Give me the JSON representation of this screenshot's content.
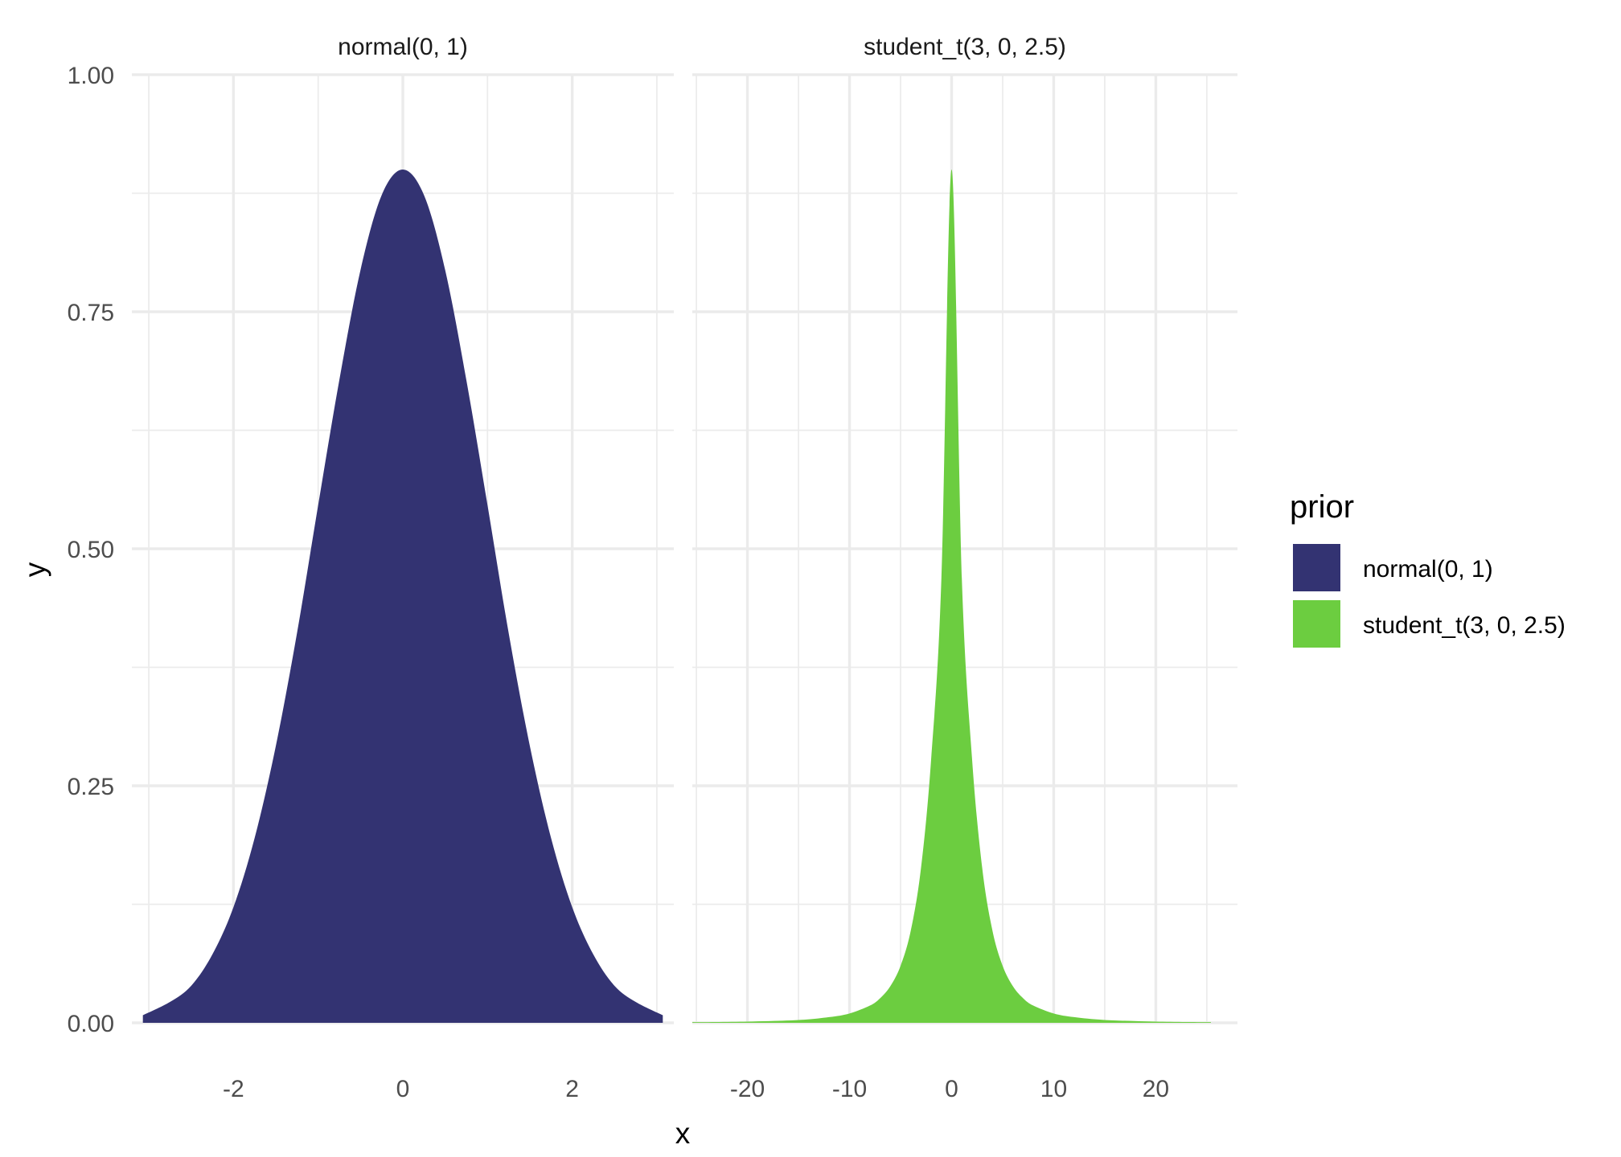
{
  "chart_data": {
    "type": "area",
    "xlabel": "x",
    "ylabel": "y",
    "ylim": [
      0,
      1
    ],
    "y_ticks": [
      "0.00",
      "0.25",
      "0.50",
      "0.75",
      "1.00"
    ],
    "y_tick_values": [
      0,
      0.25,
      0.5,
      0.75,
      1.0
    ],
    "grid": true,
    "legend": {
      "title": "prior",
      "position": "right",
      "entries": [
        {
          "label": "normal(0, 1)",
          "color": "#333372"
        },
        {
          "label": "student_t(3, 0, 2.5)",
          "color": "#6ccd40"
        }
      ]
    },
    "facets": [
      {
        "title": "normal(0, 1)",
        "color": "#333372",
        "xlim": [
          -3.2,
          3.2
        ],
        "x_ticks": [
          "-2",
          "0",
          "2"
        ],
        "x_tick_values": [
          -2,
          0,
          2
        ],
        "x_minor": [
          -3,
          -1,
          1,
          3
        ],
        "series": {
          "name": "normal(0, 1)",
          "x": [
            -3.07,
            -2.75,
            -2.5,
            -2.25,
            -2.0,
            -1.75,
            -1.5,
            -1.25,
            -1.0,
            -0.75,
            -0.5,
            -0.25,
            0.0,
            0.25,
            0.5,
            0.75,
            1.0,
            1.25,
            1.5,
            1.75,
            2.0,
            2.25,
            2.5,
            2.75,
            3.07
          ],
          "y": [
            0.008,
            0.022,
            0.039,
            0.072,
            0.122,
            0.195,
            0.292,
            0.411,
            0.546,
            0.678,
            0.794,
            0.873,
            0.9,
            0.873,
            0.794,
            0.678,
            0.546,
            0.411,
            0.292,
            0.195,
            0.122,
            0.072,
            0.039,
            0.022,
            0.008
          ]
        }
      },
      {
        "title": "student_t(3, 0, 2.5)",
        "color": "#6ccd40",
        "xlim": [
          -25.4,
          28.0
        ],
        "x_ticks": [
          "-20",
          "-10",
          "0",
          "10",
          "20"
        ],
        "x_tick_values": [
          -20,
          -10,
          0,
          10,
          20
        ],
        "x_minor": [
          -25,
          -15,
          -5,
          5,
          15,
          25
        ],
        "series": {
          "name": "student_t(3, 0, 2.5)",
          "x": [
            -25.4,
            -20,
            -15,
            -12,
            -10,
            -8,
            -7,
            -6,
            -5,
            -4,
            -3,
            -2,
            -1,
            0,
            1,
            2,
            3,
            4,
            5,
            6,
            7,
            8,
            10,
            12,
            15,
            20,
            25.4
          ],
          "y": [
            0.0007,
            0.0013,
            0.003,
            0.006,
            0.0099,
            0.0182,
            0.026,
            0.0387,
            0.0601,
            0.0972,
            0.1631,
            0.2788,
            0.469,
            0.9,
            0.469,
            0.2788,
            0.1631,
            0.0972,
            0.0601,
            0.0387,
            0.026,
            0.0182,
            0.0099,
            0.006,
            0.003,
            0.0013,
            0.0007
          ]
        }
      }
    ]
  }
}
